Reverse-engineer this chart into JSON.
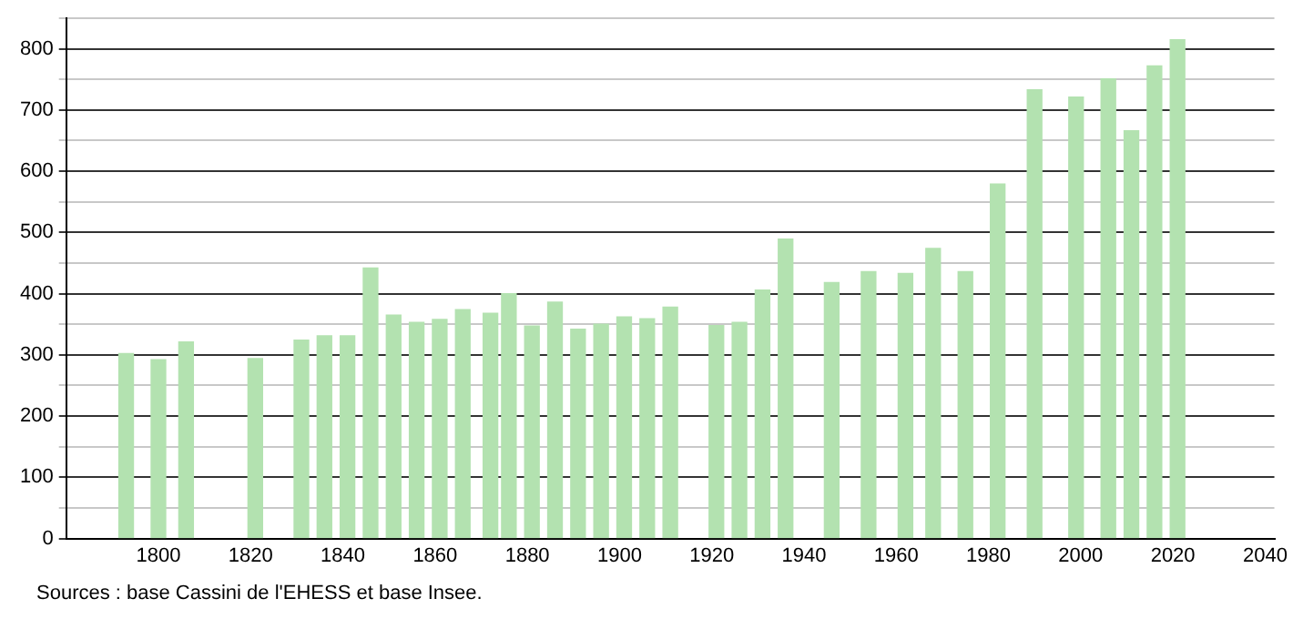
{
  "chart_data": {
    "type": "bar",
    "x": [
      1793,
      1800,
      1806,
      1821,
      1831,
      1836,
      1841,
      1846,
      1851,
      1856,
      1861,
      1866,
      1872,
      1876,
      1881,
      1886,
      1891,
      1896,
      1901,
      1906,
      1911,
      1921,
      1926,
      1931,
      1936,
      1946,
      1954,
      1962,
      1968,
      1975,
      1982,
      1990,
      1999,
      2006,
      2011,
      2016,
      2021
    ],
    "values": [
      302,
      292,
      321,
      294,
      324,
      331,
      331,
      442,
      365,
      353,
      358,
      374,
      368,
      400,
      347,
      386,
      342,
      350,
      362,
      359,
      378,
      348,
      353,
      406,
      489,
      418,
      436,
      433,
      474,
      436,
      579,
      733,
      721,
      751,
      666,
      772,
      815
    ],
    "color": "#b3e2b0",
    "xlim": [
      1780,
      2042
    ],
    "xticks": [
      1800,
      1820,
      1840,
      1860,
      1880,
      1900,
      1920,
      1940,
      1960,
      1980,
      2000,
      2020,
      2040
    ],
    "ylim": [
      0,
      850
    ],
    "yticks": [
      0,
      {
        "value": 50,
        "label": null
      },
      100,
      {
        "value": 150,
        "label": null
      },
      200,
      {
        "value": 250,
        "label": null
      },
      300,
      {
        "value": 350,
        "label": null
      },
      400,
      {
        "value": 450,
        "label": null
      },
      500,
      {
        "value": 550,
        "label": null
      },
      600,
      {
        "value": 650,
        "label": null
      },
      700,
      {
        "value": 750,
        "label": null
      },
      800,
      {
        "value": 850,
        "label": null
      }
    ],
    "grid": "y",
    "annotations": [
      "Sources : base Cassini de l'EHESS et base Insee."
    ]
  }
}
